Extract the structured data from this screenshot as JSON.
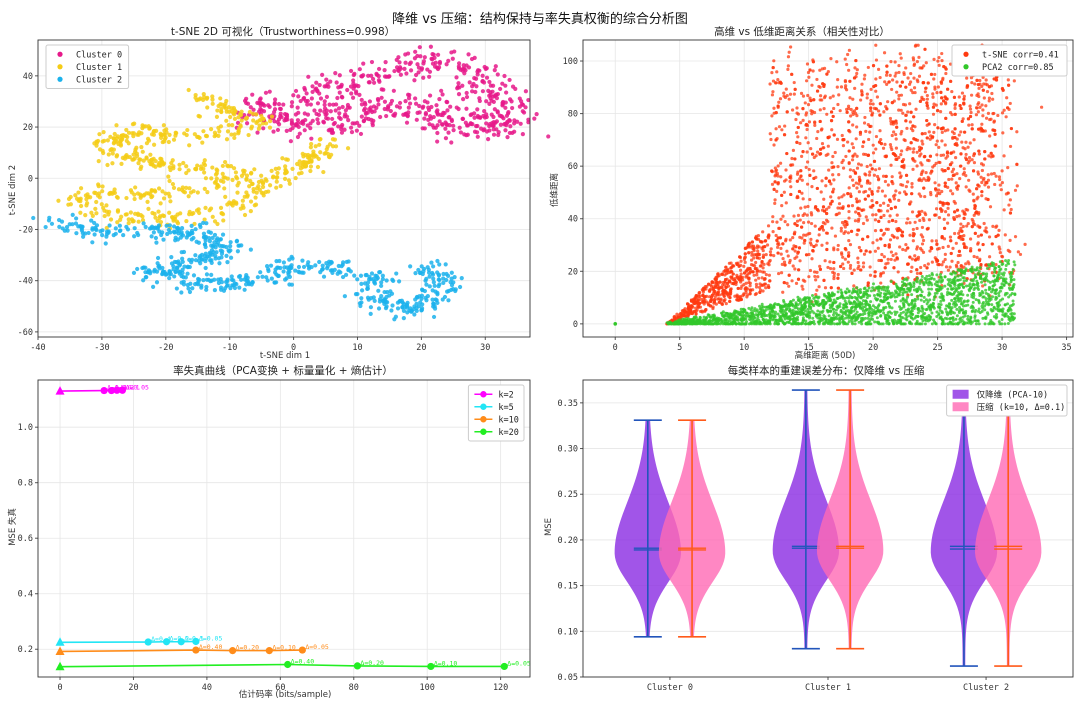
{
  "figure_title": "降维 vs 压缩：结构保持与率失真权衡的综合分析图",
  "chart_data": [
    {
      "type": "scatter",
      "title": "t-SNE 2D 可视化（Trustworthiness=0.998）",
      "xlabel": "t-SNE dim 1",
      "ylabel": "t-SNE dim 2",
      "xlim": [
        -40,
        37
      ],
      "ylim": [
        -62,
        54
      ],
      "xticks": [
        -40,
        -30,
        -20,
        -10,
        0,
        10,
        20,
        30
      ],
      "yticks": [
        -60,
        -40,
        -20,
        0,
        20,
        40
      ],
      "grid": true,
      "legend_position": "top-left",
      "series": [
        {
          "name": "Cluster 0",
          "color": "#e6198a",
          "path": [
            [
              0,
              30
            ],
            [
              8,
              36
            ],
            [
              14,
              42
            ],
            [
              20,
              46
            ],
            [
              26,
              44
            ],
            [
              30,
              36
            ],
            [
              32,
              28
            ],
            [
              34,
              20
            ],
            [
              28,
              18
            ],
            [
              22,
              26
            ],
            [
              16,
              30
            ],
            [
              10,
              26
            ],
            [
              4,
              20
            ],
            [
              -2,
              22
            ],
            [
              -6,
              30
            ]
          ],
          "spread": 5.0,
          "n": 620
        },
        {
          "name": "Cluster 1",
          "color": "#f5cc16",
          "path": [
            [
              -15,
              32
            ],
            [
              -10,
              27
            ],
            [
              -5,
              22
            ],
            [
              -10,
              18
            ],
            [
              -18,
              16
            ],
            [
              -26,
              18
            ],
            [
              -30,
              12
            ],
            [
              -22,
              6
            ],
            [
              -14,
              4
            ],
            [
              -8,
              2
            ],
            [
              -14,
              -4
            ],
            [
              -22,
              -6
            ],
            [
              -30,
              -6
            ],
            [
              -35,
              -8
            ],
            [
              -30,
              -14
            ],
            [
              -22,
              -16
            ],
            [
              -14,
              -14
            ],
            [
              -8,
              -10
            ],
            [
              -4,
              0
            ],
            [
              2,
              6
            ],
            [
              6,
              14
            ]
          ],
          "spread": 3.0,
          "n": 620
        },
        {
          "name": "Cluster 2",
          "color": "#1bb2ec",
          "path": [
            [
              -37,
              -18
            ],
            [
              -30,
              -21
            ],
            [
              -22,
              -20
            ],
            [
              -14,
              -22
            ],
            [
              -10,
              -28
            ],
            [
              -16,
              -33
            ],
            [
              -22,
              -36
            ],
            [
              -16,
              -42
            ],
            [
              -6,
              -40
            ],
            [
              2,
              -33
            ],
            [
              8,
              -36
            ],
            [
              14,
              -40
            ],
            [
              12,
              -48
            ],
            [
              18,
              -52
            ],
            [
              22,
              -45
            ],
            [
              24,
              -38
            ],
            [
              20,
              -34
            ]
          ],
          "spread": 3.2,
          "n": 620
        }
      ]
    },
    {
      "type": "scatter",
      "title": "高维 vs 低维距离关系（相关性对比）",
      "xlabel": "高维距离 (50D)",
      "ylabel": "低维距离",
      "xlim": [
        -2.5,
        35.5
      ],
      "ylim": [
        -5,
        108
      ],
      "xticks": [
        0,
        5,
        10,
        15,
        20,
        25,
        30,
        35
      ],
      "yticks": [
        0,
        20,
        40,
        60,
        80,
        100
      ],
      "grid": true,
      "legend_position": "top-right",
      "series": [
        {
          "name": "t-SNE corr=0.41",
          "color": "#ff3a10",
          "x_range": [
            4,
            34
          ],
          "y_range": [
            0,
            108
          ]
        },
        {
          "name": "PCA2 corr=0.85",
          "color": "#32c72a",
          "x_range": [
            4,
            32
          ],
          "y_range": [
            0,
            28
          ]
        }
      ]
    },
    {
      "type": "line",
      "title": "率失真曲线（PCA变换 + 标量量化 + 熵估计）",
      "xlabel": "估计码率 (bits/sample)",
      "ylabel": "MSE 失真",
      "xlim": [
        -6,
        128
      ],
      "ylim": [
        0.1,
        1.17
      ],
      "xticks": [
        0,
        20,
        40,
        60,
        80,
        100,
        120
      ],
      "yticks": [
        0.2,
        0.4,
        0.6,
        0.8,
        1.0
      ],
      "grid": true,
      "legend_position": "top-right",
      "series": [
        {
          "name": "k=2",
          "color": "#ff00ff",
          "points": [
            [
              0,
              1.13
            ],
            [
              12,
              1.132
            ],
            [
              14,
              1.132
            ],
            [
              15.5,
              1.133
            ],
            [
              17,
              1.133
            ]
          ],
          "labels": [
            "",
            "Δ=0.4",
            "Δ=0.2",
            "Δ=0.1",
            "Δ=0.05"
          ]
        },
        {
          "name": "k=5",
          "color": "#22e5f5",
          "points": [
            [
              0,
              0.225
            ],
            [
              24,
              0.226
            ],
            [
              29,
              0.227
            ],
            [
              33,
              0.227
            ],
            [
              37,
              0.228
            ]
          ],
          "labels": [
            "",
            "Δ=0.4",
            "Δ=0.2",
            "Δ=0.1",
            "Δ=0.05"
          ]
        },
        {
          "name": "k=10",
          "color": "#ff8c1a",
          "points": [
            [
              0,
              0.192
            ],
            [
              37,
              0.197
            ],
            [
              47,
              0.195
            ],
            [
              57,
              0.195
            ],
            [
              66,
              0.197
            ]
          ],
          "labels": [
            "",
            "Δ=0.40",
            "Δ=0.20",
            "Δ=0.10",
            "Δ=0.05"
          ]
        },
        {
          "name": "k=20",
          "color": "#22ee22",
          "points": [
            [
              0,
              0.137
            ],
            [
              62,
              0.145
            ],
            [
              81,
              0.14
            ],
            [
              101,
              0.138
            ],
            [
              121,
              0.138
            ]
          ],
          "labels": [
            "",
            "Δ=0.40",
            "Δ=0.20",
            "Δ=0.10",
            "Δ=0.05"
          ]
        }
      ]
    },
    {
      "type": "violin",
      "title": "每类样本的重建误差分布：仅降维 vs 压缩",
      "xlabel": "",
      "ylabel": "MSE",
      "ylim": [
        0.05,
        0.375
      ],
      "yticks": [
        0.05,
        0.1,
        0.15,
        0.2,
        0.25,
        0.3,
        0.35
      ],
      "categories": [
        "Cluster 0",
        "Cluster 1",
        "Cluster 2"
      ],
      "grid": true,
      "legend_position": "top-right",
      "series": [
        {
          "name": "仅降维 (PCA-10)",
          "color": "#8a2be2",
          "edge": "#2255bb",
          "stats": [
            {
              "min": 0.094,
              "max": 0.331,
              "mean": 0.191,
              "median": 0.189,
              "mode": 0.186
            },
            {
              "min": 0.081,
              "max": 0.364,
              "mean": 0.193,
              "median": 0.191,
              "mode": 0.188
            },
            {
              "min": 0.062,
              "max": 0.36,
              "mean": 0.193,
              "median": 0.19,
              "mode": 0.187
            }
          ]
        },
        {
          "name": "压缩 (k=10, Δ=0.1)",
          "color": "#ff69b4",
          "edge": "#ff5a1a",
          "stats": [
            {
              "min": 0.094,
              "max": 0.331,
              "mean": 0.191,
              "median": 0.189,
              "mode": 0.186
            },
            {
              "min": 0.081,
              "max": 0.364,
              "mean": 0.193,
              "median": 0.191,
              "mode": 0.188
            },
            {
              "min": 0.062,
              "max": 0.36,
              "mean": 0.193,
              "median": 0.19,
              "mode": 0.187
            }
          ]
        }
      ]
    }
  ]
}
